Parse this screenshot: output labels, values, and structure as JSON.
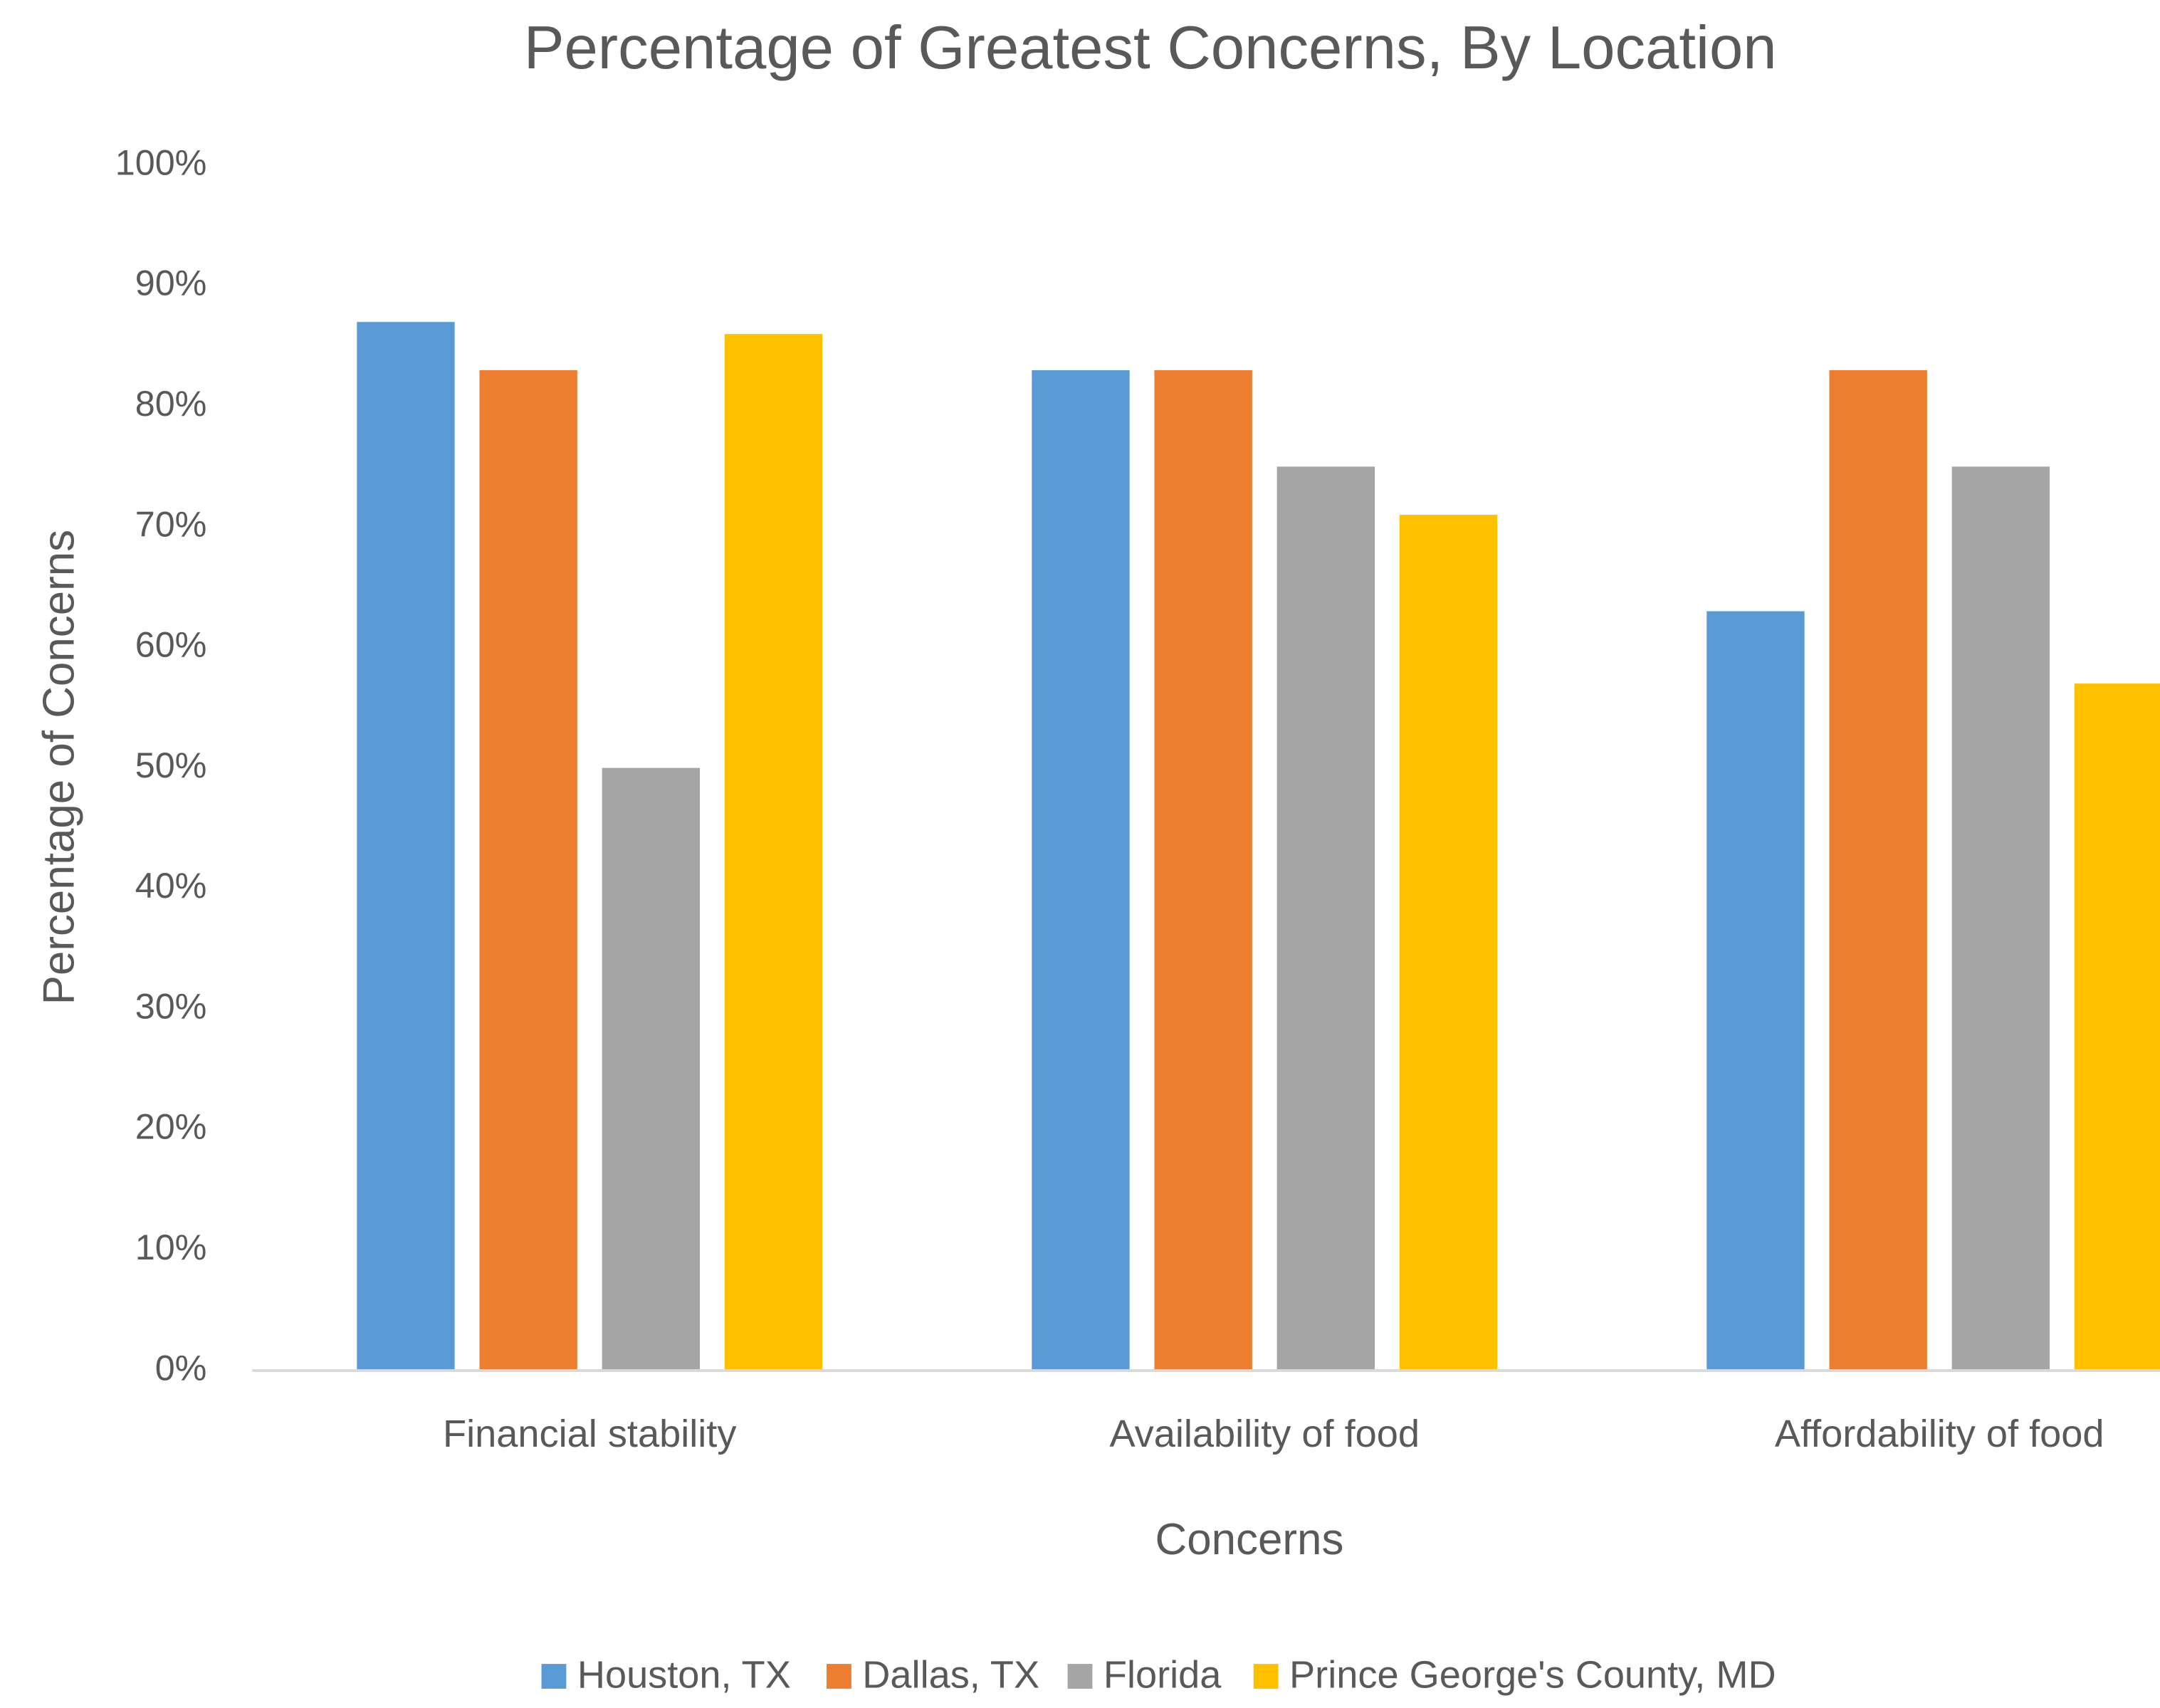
{
  "chart_data": {
    "type": "bar",
    "title": "Percentage of Greatest Concerns, By Location",
    "x_label": "Concerns",
    "y_label": "Percentage of Concerns",
    "categories": [
      "Financial stability",
      "Availability of food",
      "Affordability of food"
    ],
    "series": [
      {
        "name": "Houston, TX",
        "color": "#5b9bd5",
        "values": [
          87,
          83,
          63
        ]
      },
      {
        "name": "Dallas, TX",
        "color": "#ed7d31",
        "values": [
          83,
          83,
          83
        ]
      },
      {
        "name": "Florida",
        "color": "#a5a5a5",
        "values": [
          50,
          75,
          75
        ]
      },
      {
        "name": "Prince George's County, MD",
        "color": "#ffc000",
        "values": [
          86,
          71,
          57
        ]
      }
    ],
    "ylim": [
      0,
      100
    ],
    "yticks": [
      {
        "value": 0,
        "label": "0%"
      },
      {
        "value": 10,
        "label": "10%"
      },
      {
        "value": 20,
        "label": "20%"
      },
      {
        "value": 30,
        "label": "30%"
      },
      {
        "value": 40,
        "label": "40%"
      },
      {
        "value": 50,
        "label": "50%"
      },
      {
        "value": 60,
        "label": "60%"
      },
      {
        "value": 70,
        "label": "70%"
      },
      {
        "value": 80,
        "label": "80%"
      },
      {
        "value": 90,
        "label": "90%"
      },
      {
        "value": 100,
        "label": "100%"
      }
    ],
    "grid": false,
    "legend": "bottom"
  }
}
